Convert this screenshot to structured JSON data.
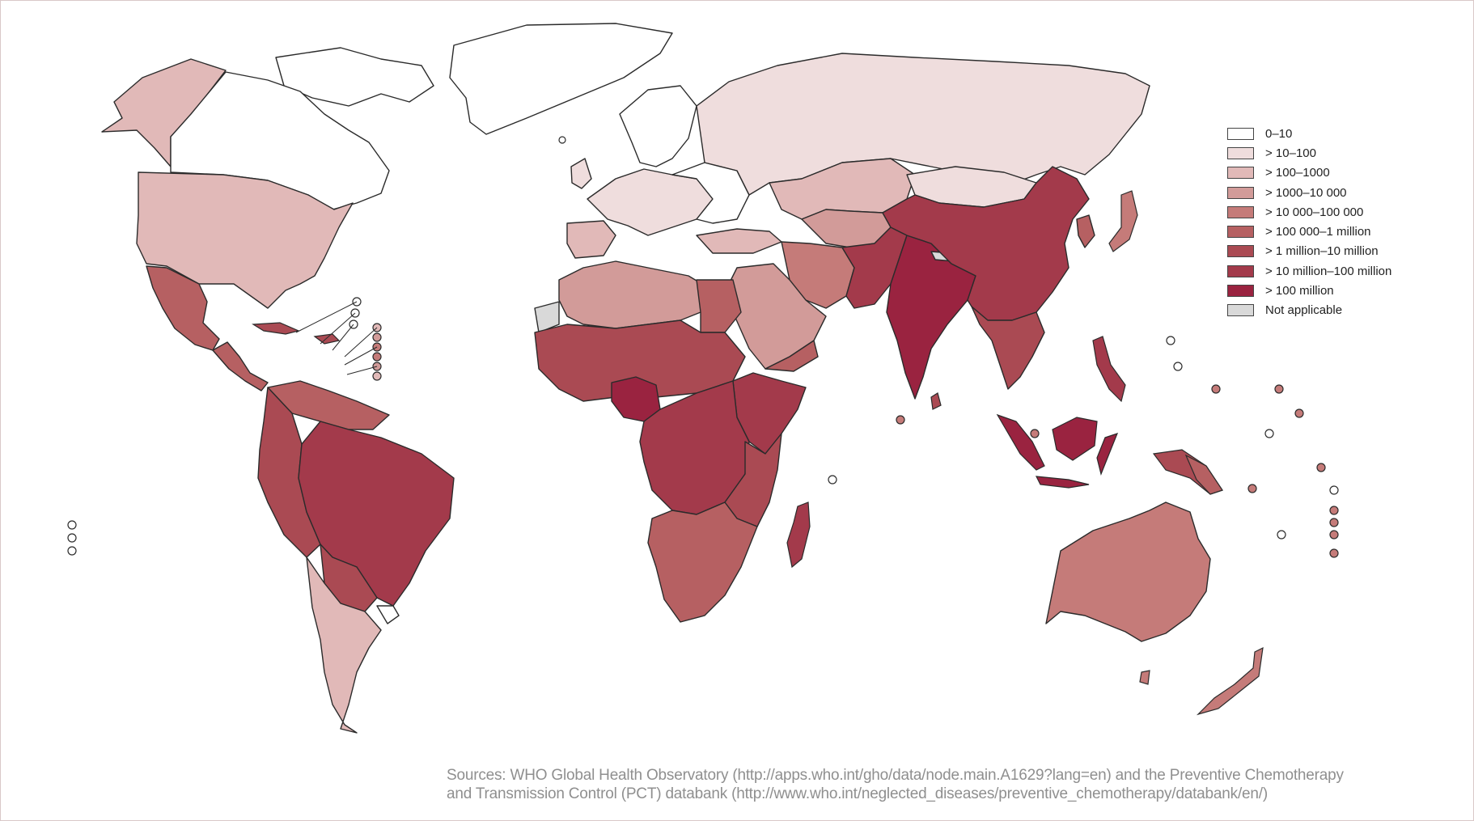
{
  "legend": {
    "items": [
      {
        "label": "0–10",
        "color": "#ffffff"
      },
      {
        "label": "> 10–100",
        "color": "#efdddd"
      },
      {
        "label": "> 100–1000",
        "color": "#e1b9b8"
      },
      {
        "label": "> 1000–10 000",
        "color": "#d29b99"
      },
      {
        "label": "> 10 000–100 000",
        "color": "#c57b79"
      },
      {
        "label": "> 100 000–1 million",
        "color": "#b66062"
      },
      {
        "label": "> 1 million–10 million",
        "color": "#aa4a53"
      },
      {
        "label": "> 10 million–100 million",
        "color": "#a33a4b"
      },
      {
        "label": "> 100 million",
        "color": "#9a2340"
      },
      {
        "label": "Not applicable",
        "color": "#d9d9d9"
      }
    ]
  },
  "sources": {
    "line1": "Sources: WHO Global Health Observatory (http://apps.who.int/gho/data/node.main.A1629?lang=en) and the Preventive Chemotherapy",
    "line2": "and Transmission Control (PCT) databank (http://www.who.int/neglected_diseases/preventive_chemotherapy/databank/en/)"
  }
}
